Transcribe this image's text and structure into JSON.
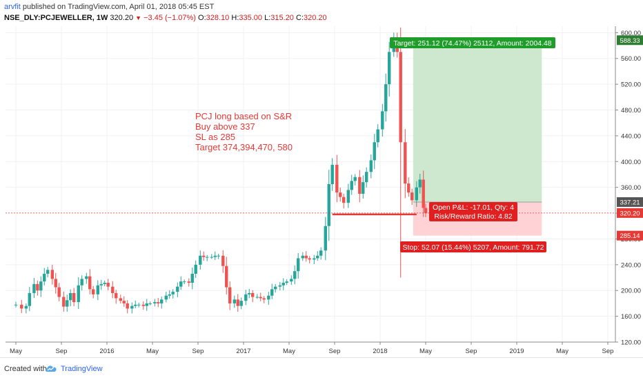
{
  "header": {
    "user": "arvfit",
    "published": "published on TradingView.com, April 01, 2018 05:45 EST",
    "symbol": "NSE_DLY:PCJEWELLER, 1W",
    "last": "320.20",
    "change": "−3.45 (−1.07%)",
    "open_label": "O:",
    "open": "328.10",
    "high_label": "H:",
    "high": "335.00",
    "low_label": "L:",
    "low": "315.20",
    "close_label": "C:",
    "close": "320.20"
  },
  "annotation_lines": [
    "PCJ long based on S&R",
    "Buy above 337",
    "SL as 285",
    "Target 374,394,470, 580"
  ],
  "labels": {
    "target": "Target: 251.12 (74.47%) 25112, Amount: 2004.48",
    "pnl": "Open P&L: -17.01, Qty: 4",
    "rr": "Risk/Reward Ratio: 4.82",
    "stop": "Stop: 52.07 (15.44%) 5207, Amount: 791.72"
  },
  "footer": {
    "created": "Created with",
    "brand": "TradingView"
  },
  "colors": {
    "up": "#26a69a",
    "down": "#ef5350",
    "target_zone": "#c8e6c9",
    "stop_zone": "#ffcdd2",
    "annotation": "#e53935",
    "support": "#e53935"
  },
  "chart_data": {
    "type": "candlestick",
    "timeframe": "1W",
    "ylim": [
      120,
      610
    ],
    "y_ticks": [
      120,
      160,
      200,
      240,
      280,
      320,
      360,
      400,
      440,
      480,
      520,
      560,
      600
    ],
    "x_ticks": [
      {
        "label": "May",
        "t": 0
      },
      {
        "label": "Sep",
        "t": 4
      },
      {
        "label": "2016",
        "t": 8
      },
      {
        "label": "May",
        "t": 12
      },
      {
        "label": "Sep",
        "t": 16
      },
      {
        "label": "2017",
        "t": 20
      },
      {
        "label": "May",
        "t": 24
      },
      {
        "label": "Sep",
        "t": 28
      },
      {
        "label": "2018",
        "t": 32
      },
      {
        "label": "May",
        "t": 36
      },
      {
        "label": "Sep",
        "t": 40
      },
      {
        "label": "2019",
        "t": 44
      },
      {
        "label": "May",
        "t": 48
      },
      {
        "label": "Sep",
        "t": 52
      }
    ],
    "price_labels": [
      {
        "value": 588.33,
        "label": "588.33"
      },
      {
        "value": 337.21,
        "label": "337.21"
      },
      {
        "value": 320.2,
        "label": "320.20"
      },
      {
        "value": 285.14,
        "label": "285.14"
      }
    ],
    "close_line": 320.2,
    "position": {
      "t_start": 34.9,
      "t_end": 46.2,
      "entry": 337.21,
      "target": 588.33,
      "stop": 285.14
    },
    "support": {
      "t_start": 27.8,
      "t_end": 35.2,
      "value": 318
    },
    "close_path": [
      [
        -0.5,
        178
      ],
      [
        0,
        178
      ],
      [
        0.5,
        172
      ],
      [
        0.9,
        176
      ],
      [
        1.2,
        196
      ],
      [
        1.6,
        210
      ],
      [
        1.9,
        200
      ],
      [
        2.2,
        214
      ],
      [
        2.5,
        226
      ],
      [
        2.8,
        232
      ],
      [
        3.2,
        218
      ],
      [
        3.5,
        205
      ],
      [
        3.8,
        190
      ],
      [
        4.2,
        175
      ],
      [
        4.5,
        185
      ],
      [
        4.8,
        196
      ],
      [
        5.1,
        182
      ],
      [
        5.5,
        208
      ],
      [
        5.8,
        218
      ],
      [
        6.2,
        222
      ],
      [
        6.5,
        202
      ],
      [
        6.8,
        194
      ],
      [
        7.2,
        208
      ],
      [
        7.5,
        210
      ],
      [
        7.8,
        212
      ],
      [
        8.1,
        206
      ],
      [
        8.5,
        196
      ],
      [
        8.8,
        188
      ],
      [
        9.2,
        184
      ],
      [
        9.5,
        180
      ],
      [
        9.8,
        172
      ],
      [
        10.2,
        176
      ],
      [
        10.5,
        178
      ],
      [
        10.8,
        178
      ],
      [
        11.2,
        176
      ],
      [
        11.5,
        180
      ],
      [
        11.8,
        180
      ],
      [
        12.2,
        182
      ],
      [
        12.5,
        180
      ],
      [
        12.8,
        186
      ],
      [
        13.2,
        192
      ],
      [
        13.5,
        194
      ],
      [
        13.8,
        198
      ],
      [
        14.2,
        206
      ],
      [
        14.5,
        214
      ],
      [
        14.8,
        214
      ],
      [
        15.2,
        212
      ],
      [
        15.5,
        226
      ],
      [
        15.8,
        240
      ],
      [
        16.2,
        254
      ],
      [
        16.5,
        252
      ],
      [
        16.8,
        252
      ],
      [
        17.2,
        252
      ],
      [
        17.5,
        254
      ],
      [
        17.8,
        254
      ],
      [
        18.2,
        238
      ],
      [
        18.5,
        205
      ],
      [
        18.8,
        180
      ],
      [
        19.2,
        186
      ],
      [
        19.5,
        176
      ],
      [
        19.8,
        184
      ],
      [
        20.2,
        194
      ],
      [
        20.5,
        196
      ],
      [
        20.8,
        190
      ],
      [
        21.2,
        190
      ],
      [
        21.5,
        188
      ],
      [
        21.8,
        186
      ],
      [
        22.2,
        192
      ],
      [
        22.5,
        202
      ],
      [
        22.8,
        206
      ],
      [
        23.2,
        208
      ],
      [
        23.5,
        212
      ],
      [
        23.8,
        214
      ],
      [
        24.2,
        218
      ],
      [
        24.5,
        230
      ],
      [
        24.8,
        250
      ],
      [
        25.2,
        254
      ],
      [
        25.5,
        250
      ],
      [
        25.8,
        248
      ],
      [
        26.2,
        250
      ],
      [
        26.5,
        254
      ],
      [
        26.8,
        262
      ],
      [
        27.2,
        300
      ],
      [
        27.5,
        365
      ],
      [
        27.8,
        395
      ],
      [
        28.2,
        352
      ],
      [
        28.5,
        345
      ],
      [
        28.8,
        336
      ],
      [
        29.2,
        356
      ],
      [
        29.5,
        370
      ],
      [
        29.8,
        376
      ],
      [
        30.2,
        350
      ],
      [
        30.5,
        368
      ],
      [
        30.8,
        384
      ],
      [
        31.2,
        402
      ],
      [
        31.5,
        430
      ],
      [
        31.8,
        450
      ],
      [
        32.2,
        478
      ],
      [
        32.5,
        520
      ],
      [
        32.8,
        570
      ],
      [
        33.2,
        588
      ],
      [
        33.5,
        570
      ],
      [
        33.8,
        430
      ],
      [
        34.2,
        366
      ],
      [
        34.5,
        352
      ],
      [
        34.8,
        340
      ],
      [
        35.2,
        360
      ],
      [
        35.5,
        372
      ],
      [
        35.8,
        328
      ],
      [
        36.0,
        320
      ]
    ],
    "wick_extremes": [
      {
        "t": 33.4,
        "high": 600
      },
      {
        "t": 33.7,
        "low": 220
      }
    ],
    "annotations": [
      "PCJ long based on S&R",
      "Buy above 337",
      "SL as 285",
      "Target 374,394,470, 580"
    ]
  }
}
